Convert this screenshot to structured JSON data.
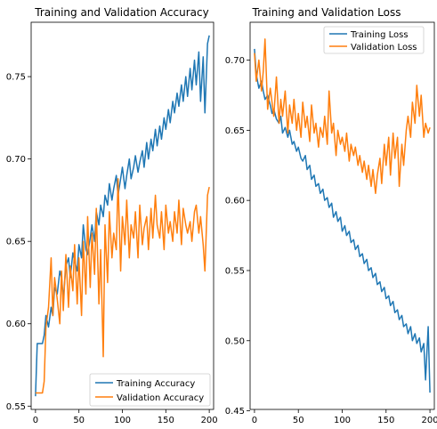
{
  "chart_data": [
    {
      "type": "line",
      "title": "Training and Validation Accuracy",
      "xlabel": "",
      "ylabel": "",
      "xlim": [
        -5,
        205
      ],
      "ylim": [
        0.548,
        0.783
      ],
      "xticks": [
        0,
        50,
        100,
        150,
        200
      ],
      "xtick_labels": [
        "0",
        "50",
        "100",
        "150",
        "200"
      ],
      "yticks": [
        0.55,
        0.6,
        0.65,
        0.7,
        0.75
      ],
      "ytick_labels": [
        "0.55",
        "0.60",
        "0.65",
        "0.70",
        "0.75"
      ],
      "grid": false,
      "legend": "lower-right",
      "series": [
        {
          "name": "Training Accuracy",
          "color": "#1f77b4",
          "x": [
            0,
            2,
            5,
            8,
            10,
            12,
            15,
            18,
            20,
            22,
            25,
            28,
            30,
            32,
            35,
            38,
            40,
            43,
            45,
            48,
            50,
            53,
            55,
            58,
            60,
            63,
            65,
            68,
            70,
            73,
            75,
            78,
            80,
            83,
            85,
            88,
            90,
            93,
            95,
            98,
            100,
            103,
            105,
            108,
            110,
            113,
            115,
            118,
            120,
            123,
            125,
            128,
            130,
            133,
            135,
            138,
            140,
            143,
            145,
            148,
            150,
            153,
            155,
            158,
            160,
            163,
            165,
            168,
            170,
            173,
            175,
            178,
            180,
            183,
            185,
            188,
            190,
            193,
            195,
            198,
            200
          ],
          "values": [
            0.556,
            0.588,
            0.588,
            0.588,
            0.593,
            0.605,
            0.598,
            0.61,
            0.605,
            0.622,
            0.618,
            0.632,
            0.628,
            0.615,
            0.635,
            0.64,
            0.628,
            0.643,
            0.638,
            0.632,
            0.648,
            0.64,
            0.66,
            0.645,
            0.642,
            0.652,
            0.66,
            0.65,
            0.668,
            0.66,
            0.672,
            0.665,
            0.678,
            0.672,
            0.685,
            0.675,
            0.682,
            0.69,
            0.678,
            0.688,
            0.695,
            0.682,
            0.69,
            0.7,
            0.688,
            0.695,
            0.702,
            0.692,
            0.698,
            0.705,
            0.695,
            0.71,
            0.7,
            0.712,
            0.705,
            0.718,
            0.708,
            0.72,
            0.712,
            0.725,
            0.718,
            0.73,
            0.722,
            0.735,
            0.728,
            0.74,
            0.732,
            0.745,
            0.735,
            0.75,
            0.738,
            0.755,
            0.742,
            0.76,
            0.745,
            0.765,
            0.735,
            0.762,
            0.728,
            0.77,
            0.775
          ]
        },
        {
          "name": "Validation Accuracy",
          "color": "#ff7f0e",
          "x": [
            0,
            2,
            5,
            8,
            10,
            12,
            15,
            18,
            20,
            22,
            25,
            28,
            30,
            32,
            35,
            38,
            40,
            43,
            45,
            48,
            50,
            53,
            55,
            58,
            60,
            63,
            65,
            68,
            70,
            73,
            75,
            78,
            80,
            83,
            85,
            88,
            90,
            93,
            95,
            98,
            100,
            103,
            105,
            108,
            110,
            113,
            115,
            118,
            120,
            123,
            125,
            128,
            130,
            133,
            135,
            138,
            140,
            143,
            145,
            148,
            150,
            153,
            155,
            158,
            160,
            163,
            165,
            168,
            170,
            173,
            175,
            178,
            180,
            183,
            185,
            188,
            190,
            193,
            195,
            198,
            200
          ],
          "values": [
            0.558,
            0.558,
            0.558,
            0.558,
            0.565,
            0.598,
            0.61,
            0.64,
            0.605,
            0.628,
            0.615,
            0.6,
            0.632,
            0.608,
            0.642,
            0.61,
            0.635,
            0.62,
            0.648,
            0.612,
            0.64,
            0.605,
            0.65,
            0.618,
            0.665,
            0.622,
            0.655,
            0.63,
            0.67,
            0.612,
            0.645,
            0.58,
            0.66,
            0.625,
            0.668,
            0.64,
            0.655,
            0.645,
            0.688,
            0.632,
            0.665,
            0.648,
            0.675,
            0.64,
            0.66,
            0.652,
            0.668,
            0.64,
            0.672,
            0.648,
            0.658,
            0.665,
            0.645,
            0.67,
            0.652,
            0.678,
            0.66,
            0.652,
            0.668,
            0.645,
            0.672,
            0.655,
            0.662,
            0.65,
            0.668,
            0.655,
            0.675,
            0.648,
            0.67,
            0.66,
            0.655,
            0.662,
            0.65,
            0.668,
            0.672,
            0.655,
            0.665,
            0.648,
            0.632,
            0.678,
            0.683
          ]
        }
      ]
    },
    {
      "type": "line",
      "title": "Training and Validation Loss",
      "xlabel": "",
      "ylabel": "",
      "xlim": [
        -5,
        205
      ],
      "ylim": [
        0.451,
        0.727
      ],
      "xticks": [
        0,
        50,
        100,
        150,
        200
      ],
      "xtick_labels": [
        "0",
        "50",
        "100",
        "150",
        "200"
      ],
      "yticks": [
        0.45,
        0.5,
        0.55,
        0.6,
        0.65,
        0.7
      ],
      "ytick_labels": [
        "0.45",
        "0.50",
        "0.55",
        "0.60",
        "0.65",
        "0.70"
      ],
      "grid": false,
      "legend": "upper-right",
      "series": [
        {
          "name": "Training Loss",
          "color": "#1f77b4",
          "x": [
            0,
            2,
            5,
            8,
            10,
            12,
            15,
            18,
            20,
            22,
            25,
            28,
            30,
            32,
            35,
            38,
            40,
            43,
            45,
            48,
            50,
            53,
            55,
            58,
            60,
            63,
            65,
            68,
            70,
            73,
            75,
            78,
            80,
            83,
            85,
            88,
            90,
            93,
            95,
            98,
            100,
            103,
            105,
            108,
            110,
            113,
            115,
            118,
            120,
            123,
            125,
            128,
            130,
            133,
            135,
            138,
            140,
            143,
            145,
            148,
            150,
            153,
            155,
            158,
            160,
            163,
            165,
            168,
            170,
            173,
            175,
            178,
            180,
            183,
            185,
            188,
            190,
            193,
            195,
            198,
            200
          ],
          "values": [
            0.708,
            0.69,
            0.68,
            0.685,
            0.678,
            0.672,
            0.675,
            0.668,
            0.662,
            0.665,
            0.658,
            0.655,
            0.66,
            0.648,
            0.652,
            0.645,
            0.65,
            0.64,
            0.642,
            0.635,
            0.638,
            0.63,
            0.628,
            0.632,
            0.622,
            0.625,
            0.615,
            0.618,
            0.61,
            0.612,
            0.605,
            0.608,
            0.6,
            0.602,
            0.595,
            0.598,
            0.588,
            0.592,
            0.585,
            0.588,
            0.578,
            0.582,
            0.575,
            0.578,
            0.57,
            0.572,
            0.565,
            0.568,
            0.56,
            0.562,
            0.555,
            0.558,
            0.55,
            0.552,
            0.545,
            0.548,
            0.54,
            0.542,
            0.535,
            0.538,
            0.53,
            0.532,
            0.525,
            0.528,
            0.52,
            0.522,
            0.515,
            0.518,
            0.51,
            0.512,
            0.505,
            0.51,
            0.5,
            0.505,
            0.498,
            0.502,
            0.492,
            0.498,
            0.472,
            0.51,
            0.463
          ]
        },
        {
          "name": "Validation Loss",
          "color": "#ff7f0e",
          "x": [
            0,
            2,
            5,
            8,
            10,
            12,
            15,
            18,
            20,
            22,
            25,
            28,
            30,
            32,
            35,
            38,
            40,
            43,
            45,
            48,
            50,
            53,
            55,
            58,
            60,
            63,
            65,
            68,
            70,
            73,
            75,
            78,
            80,
            83,
            85,
            88,
            90,
            93,
            95,
            98,
            100,
            103,
            105,
            108,
            110,
            113,
            115,
            118,
            120,
            123,
            125,
            128,
            130,
            133,
            135,
            138,
            140,
            143,
            145,
            148,
            150,
            153,
            155,
            158,
            160,
            163,
            165,
            168,
            170,
            173,
            175,
            178,
            180,
            183,
            185,
            188,
            190,
            193,
            195,
            198,
            200
          ],
          "values": [
            0.705,
            0.685,
            0.7,
            0.678,
            0.692,
            0.715,
            0.665,
            0.68,
            0.67,
            0.66,
            0.688,
            0.655,
            0.672,
            0.66,
            0.678,
            0.648,
            0.668,
            0.655,
            0.672,
            0.65,
            0.662,
            0.645,
            0.67,
            0.652,
            0.66,
            0.642,
            0.668,
            0.648,
            0.655,
            0.638,
            0.652,
            0.645,
            0.66,
            0.64,
            0.678,
            0.648,
            0.655,
            0.632,
            0.65,
            0.64,
            0.645,
            0.635,
            0.648,
            0.628,
            0.64,
            0.632,
            0.638,
            0.625,
            0.632,
            0.62,
            0.628,
            0.615,
            0.625,
            0.61,
            0.622,
            0.605,
            0.618,
            0.63,
            0.612,
            0.64,
            0.625,
            0.645,
            0.618,
            0.648,
            0.63,
            0.645,
            0.61,
            0.64,
            0.625,
            0.65,
            0.66,
            0.645,
            0.67,
            0.655,
            0.682,
            0.66,
            0.675,
            0.645,
            0.655,
            0.648,
            0.652
          ]
        }
      ]
    }
  ]
}
